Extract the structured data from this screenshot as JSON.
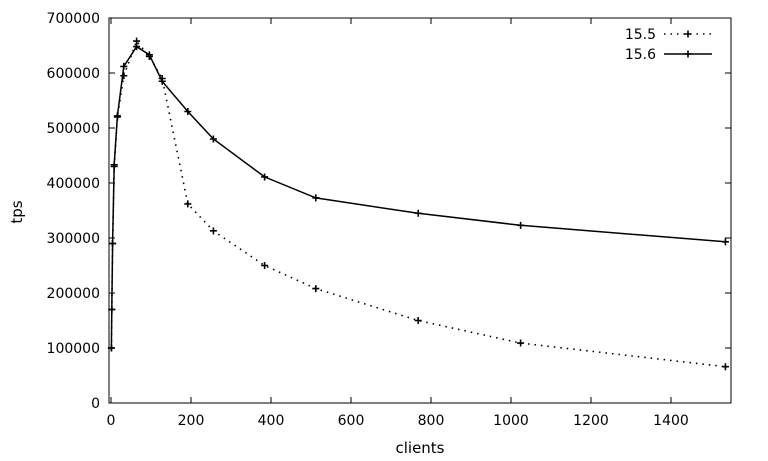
{
  "chart_data": {
    "type": "line",
    "title": "",
    "xlabel": "clients",
    "ylabel": "tps",
    "xlim": [
      -5,
      1550
    ],
    "ylim": [
      0,
      700000
    ],
    "xticks": [
      0,
      200,
      400,
      600,
      800,
      1000,
      1200,
      1400
    ],
    "yticks": [
      0,
      100000,
      200000,
      300000,
      400000,
      500000,
      600000,
      700000
    ],
    "grid": false,
    "legend_position": "top-right",
    "series": [
      {
        "name": "15.5",
        "style": "dotted",
        "color": "#000000",
        "x": [
          1,
          2,
          4,
          8,
          16,
          32,
          64,
          96,
          128,
          192,
          256,
          384,
          512,
          768,
          1024,
          1536
        ],
        "y": [
          100000,
          170000,
          290000,
          430000,
          520000,
          595000,
          658000,
          630000,
          590000,
          362000,
          313000,
          250000,
          208000,
          150000,
          109000,
          66000
        ]
      },
      {
        "name": "15.6",
        "style": "solid",
        "color": "#000000",
        "x": [
          1,
          2,
          4,
          8,
          16,
          32,
          64,
          96,
          128,
          192,
          256,
          384,
          512,
          768,
          1024,
          1536
        ],
        "y": [
          100000,
          170000,
          290000,
          433000,
          522000,
          612000,
          648000,
          633000,
          585000,
          530000,
          480000,
          411000,
          373000,
          345000,
          323000,
          293000
        ]
      }
    ]
  }
}
